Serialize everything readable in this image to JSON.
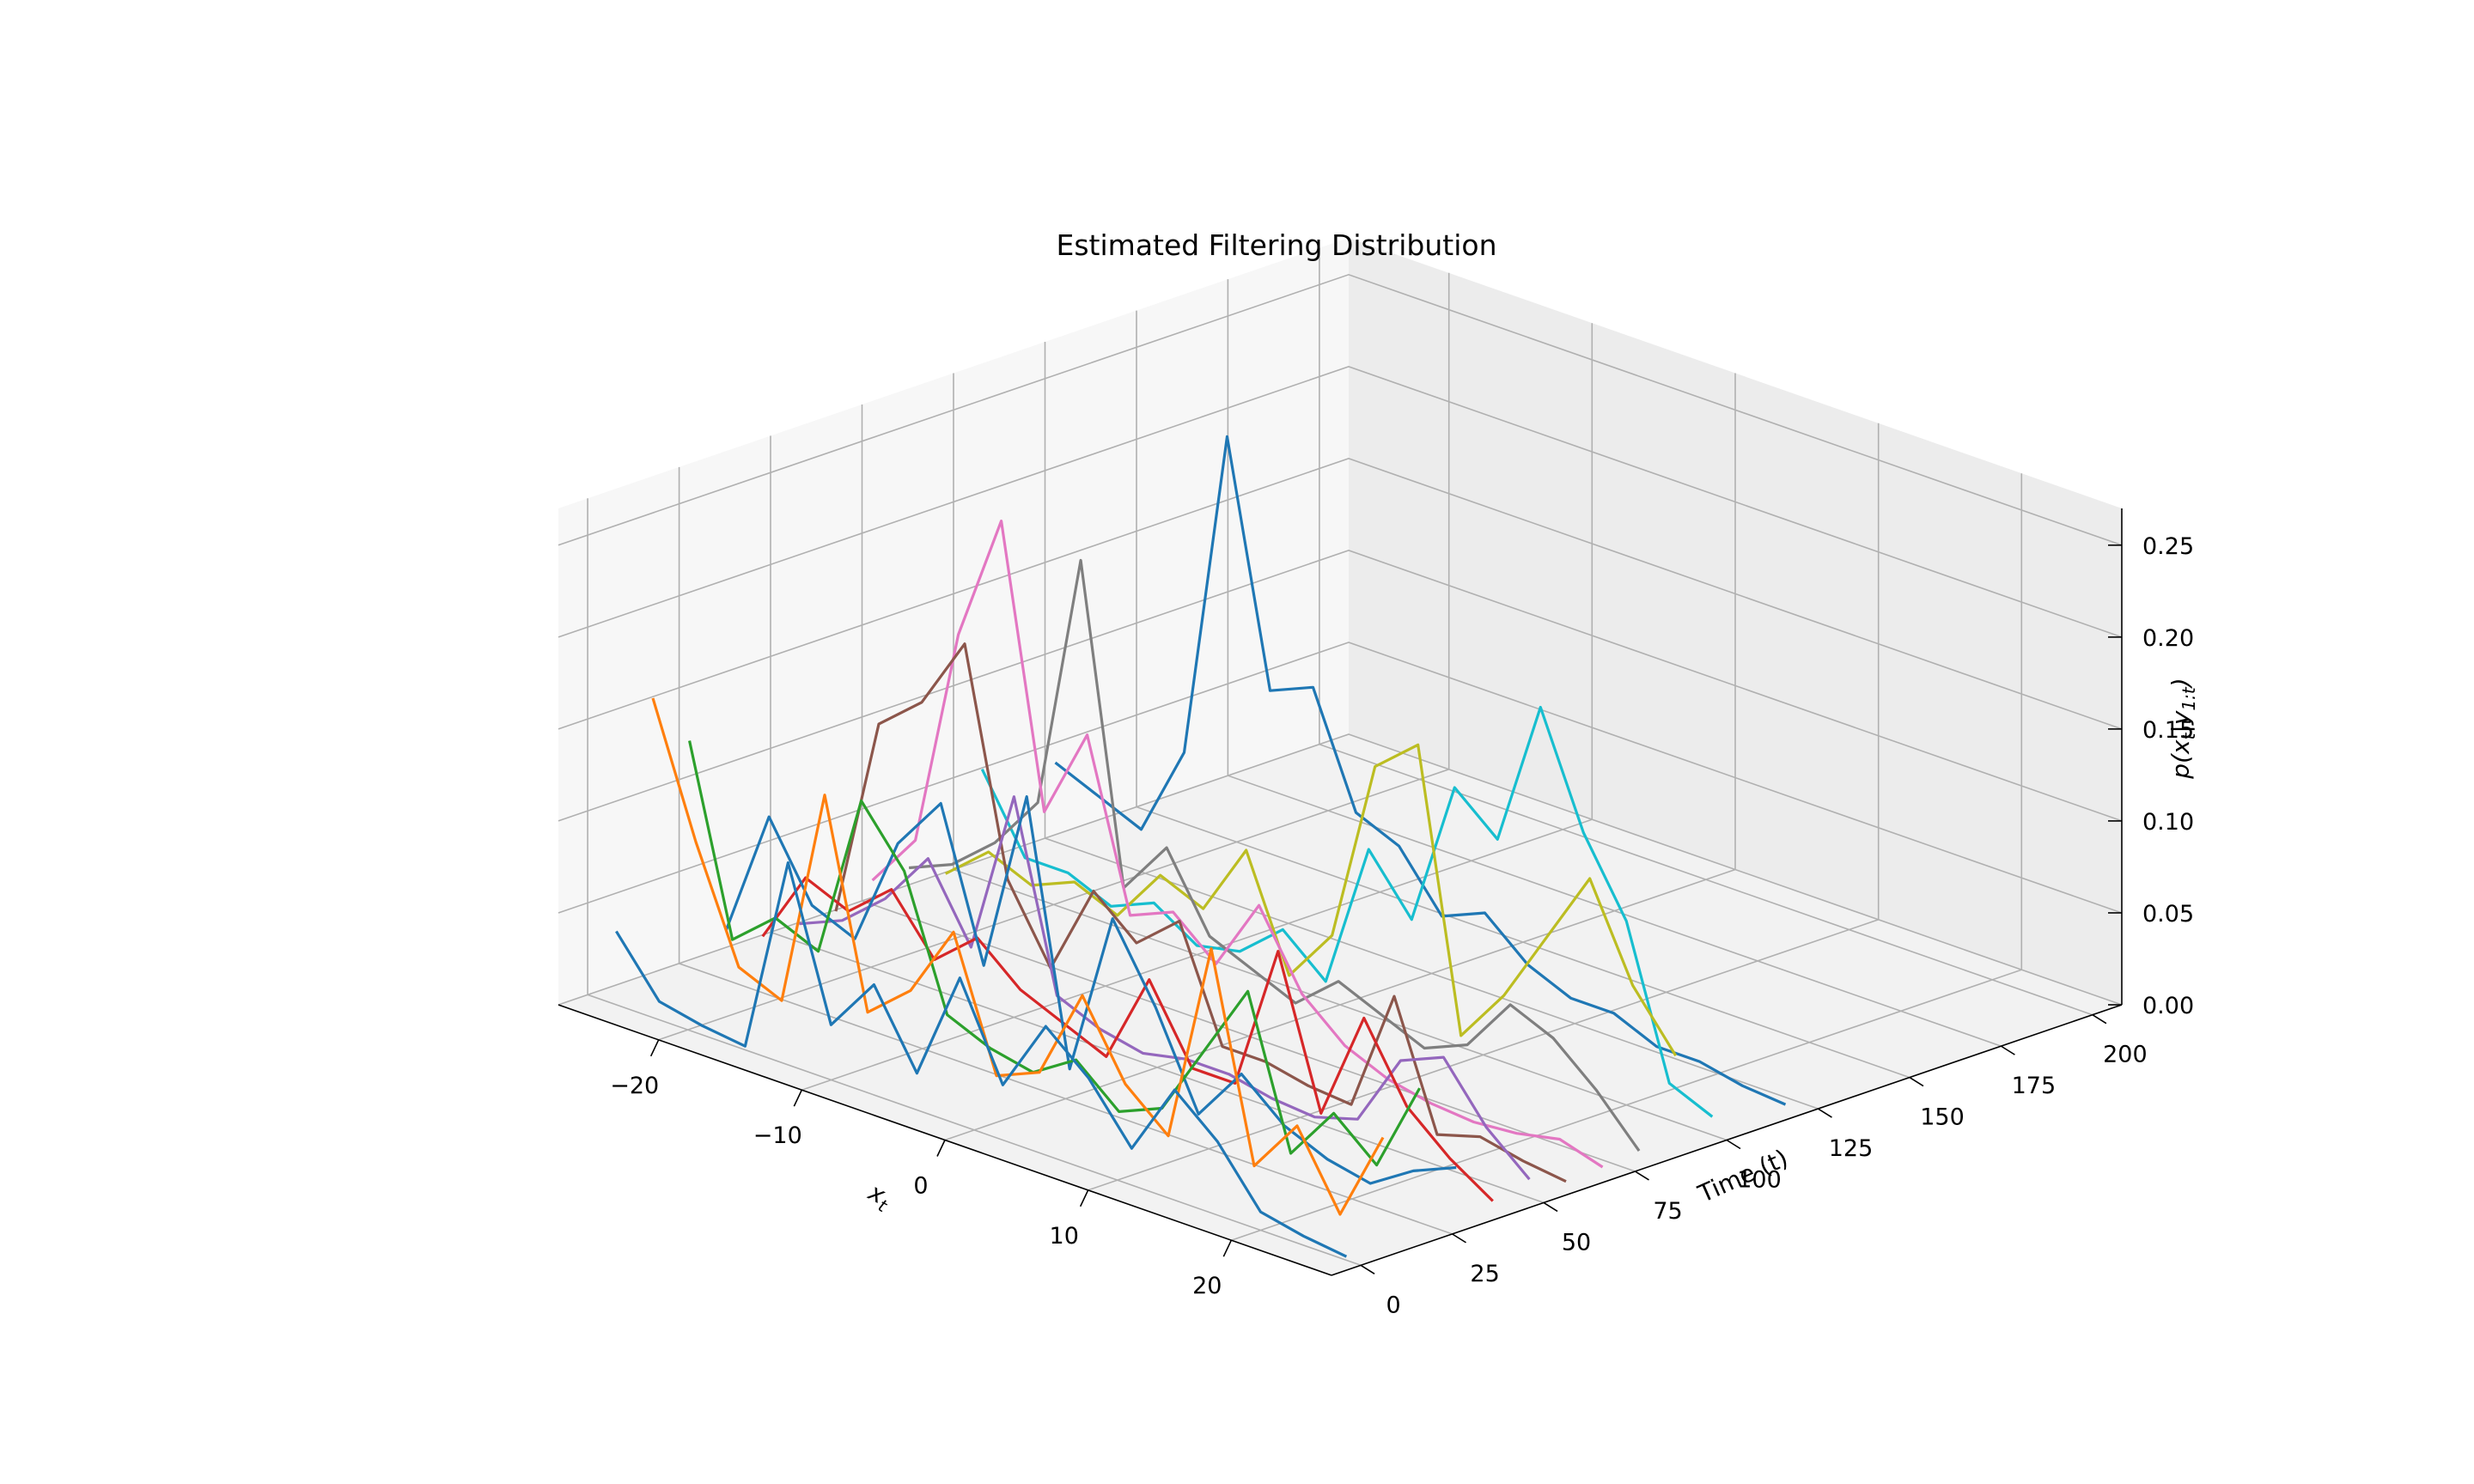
{
  "chart_data": {
    "type": "line",
    "projection": "3d",
    "title": "Estimated Filtering Distribution",
    "xlabel": "x_t",
    "ylabel": "Time (t)",
    "zlabel": "p(x_t|y_{1:t})",
    "xlim": [
      -27,
      27
    ],
    "ylim": [
      -8,
      208
    ],
    "zlim": [
      0,
      0.27
    ],
    "xticks": [
      -20,
      -10,
      0,
      10,
      20
    ],
    "yticks": [
      0,
      25,
      50,
      75,
      100,
      125,
      150,
      175,
      200
    ],
    "zticks": [
      0.0,
      0.05,
      0.1,
      0.15,
      0.2,
      0.25
    ],
    "xtick_labels": [
      "−20",
      "−10",
      "0",
      "10",
      "20"
    ],
    "ytick_labels": [
      "0",
      "25",
      "50",
      "75",
      "100",
      "125",
      "150",
      "175",
      "200"
    ],
    "ztick_labels": [
      "0.00",
      "0.05",
      "0.10",
      "0.15",
      "0.20",
      "0.25"
    ],
    "grid": true,
    "x": [
      -25,
      -22,
      -19,
      -16,
      -13,
      -10,
      -7,
      -4,
      -1,
      2,
      5,
      8,
      11,
      14,
      17,
      20,
      23,
      26
    ],
    "series": [
      {
        "t": 0,
        "color": "#1f77b4",
        "values": [
          0.04,
          0.01,
          0.005,
          0.002,
          0.11,
          0.03,
          0.06,
          0.02,
          0.08,
          0.03,
          0.07,
          0.05,
          0.02,
          0.06,
          0.04,
          0.01,
          0.005,
          0.002
        ]
      },
      {
        "t": 10,
        "color": "#ff7f0e",
        "values": [
          0.16,
          0.09,
          0.03,
          0.02,
          0.14,
          0.03,
          0.05,
          0.09,
          0.02,
          0.03,
          0.08,
          0.04,
          0.02,
          0.13,
          0.02,
          0.05,
          0.01,
          0.06
        ]
      },
      {
        "t": 20,
        "color": "#2ca02c",
        "values": [
          0.13,
          0.03,
          0.05,
          0.04,
          0.13,
          0.1,
          0.03,
          0.02,
          0.015,
          0.03,
          0.01,
          0.02,
          0.06,
          0.1,
          0.02,
          0.05,
          0.03,
          0.08
        ]
      },
      {
        "t": 30,
        "color": "#1f77b4",
        "values": [
          0.02,
          0.09,
          0.05,
          0.04,
          0.1,
          0.13,
          0.05,
          0.15,
          0.01,
          0.1,
          0.06,
          0.01,
          0.04,
          0.02,
          0.01,
          0.005,
          0.02,
          0.03
        ]
      },
      {
        "t": 40,
        "color": "#d62728",
        "values": [
          0.01,
          0.05,
          0.04,
          0.06,
          0.03,
          0.05,
          0.03,
          0.02,
          0.01,
          0.06,
          0.02,
          0.02,
          0.1,
          0.02,
          0.08,
          0.04,
          0.02,
          0.005
        ]
      },
      {
        "t": 50,
        "color": "#9467bd",
        "values": [
          0.01,
          0.02,
          0.04,
          0.07,
          0.03,
          0.12,
          0.02,
          0.01,
          0.005,
          0.01,
          0.01,
          0.005,
          0.003,
          0.01,
          0.05,
          0.06,
          0.03,
          0.01
        ]
      },
      {
        "t": 60,
        "color": "#8c564b",
        "values": [
          0.01,
          0.12,
          0.14,
          0.18,
          0.06,
          0.02,
          0.07,
          0.05,
          0.07,
          0.01,
          0.01,
          0.005,
          0.003,
          0.07,
          0.003,
          0.01,
          0.005,
          0.002
        ]
      },
      {
        "t": 70,
        "color": "#e377c2",
        "values": [
          0.02,
          0.05,
          0.17,
          0.24,
          0.09,
          0.14,
          0.05,
          0.06,
          0.04,
          0.08,
          0.04,
          0.02,
          0.01,
          0.005,
          0.003,
          0.005,
          0.01,
          0.003
        ]
      },
      {
        "t": 80,
        "color": "#7f7f7f",
        "values": [
          0.02,
          0.03,
          0.05,
          0.08,
          0.22,
          0.05,
          0.08,
          0.04,
          0.03,
          0.02,
          0.04,
          0.03,
          0.02,
          0.03,
          0.06,
          0.05,
          0.03,
          0.005
        ]
      },
      {
        "t": 90,
        "color": "#bcbd22",
        "values": [
          0.01,
          0.03,
          0.02,
          0.03,
          0.02,
          0.05,
          0.04,
          0.08,
          0.02,
          0.05,
          0.15,
          0.17,
          0.02,
          0.05,
          0.09,
          0.13,
          0.08,
          0.05
        ]
      },
      {
        "t": 100,
        "color": "#17becf",
        "values": [
          0.06,
          0.02,
          0.02,
          0.01,
          0.02,
          0.005,
          0.01,
          0.03,
          0.01,
          0.09,
          0.06,
          0.14,
          0.12,
          0.2,
          0.14,
          0.1,
          0.02,
          0.01
        ]
      },
      {
        "t": 120,
        "color": "#1f77b4",
        "values": [
          0.05,
          0.04,
          0.03,
          0.08,
          0.26,
          0.13,
          0.14,
          0.08,
          0.07,
          0.04,
          0.05,
          0.03,
          0.02,
          0.02,
          0.01,
          0.01,
          0.005,
          0.003
        ]
      }
    ]
  }
}
